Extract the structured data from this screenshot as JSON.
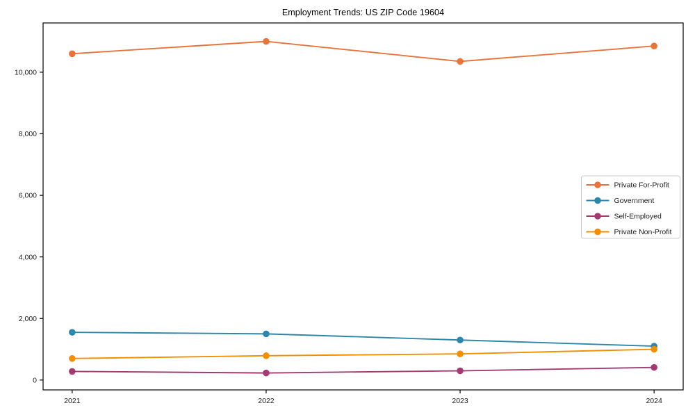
{
  "chart_data": {
    "type": "line",
    "title": "Employment Trends: US ZIP Code 19604",
    "x": [
      2021,
      2022,
      2023,
      2024
    ],
    "x_tick_labels": [
      "2021",
      "2022",
      "2023",
      "2024"
    ],
    "series": [
      {
        "name": "Private For-Profit",
        "color": "#E8743B",
        "values": [
          10600,
          11000,
          10350,
          10850
        ]
      },
      {
        "name": "Government",
        "color": "#2E86AB",
        "values": [
          1550,
          1500,
          1300,
          1100
        ]
      },
      {
        "name": "Self-Employed",
        "color": "#A23B72",
        "values": [
          280,
          230,
          300,
          410
        ]
      },
      {
        "name": "Private Non-Profit",
        "color": "#F18F01",
        "values": [
          700,
          790,
          850,
          1000
        ]
      }
    ],
    "xlabel": "",
    "ylabel": "",
    "xlim": [
      2020.85,
      2024.15
    ],
    "ylim": [
      -320,
      11600
    ],
    "yticks": [
      0,
      2000,
      4000,
      6000,
      8000,
      10000
    ],
    "ytick_labels": [
      "0",
      "2,000",
      "4,000",
      "6,000",
      "8,000",
      "10,000"
    ],
    "grid": false,
    "legend_position": "center right",
    "marker": "o",
    "axis_color": "#000000",
    "tick_label_color": "#1a1a1a",
    "legend_border_color": "#cccccc",
    "background_color": "#ffffff"
  }
}
